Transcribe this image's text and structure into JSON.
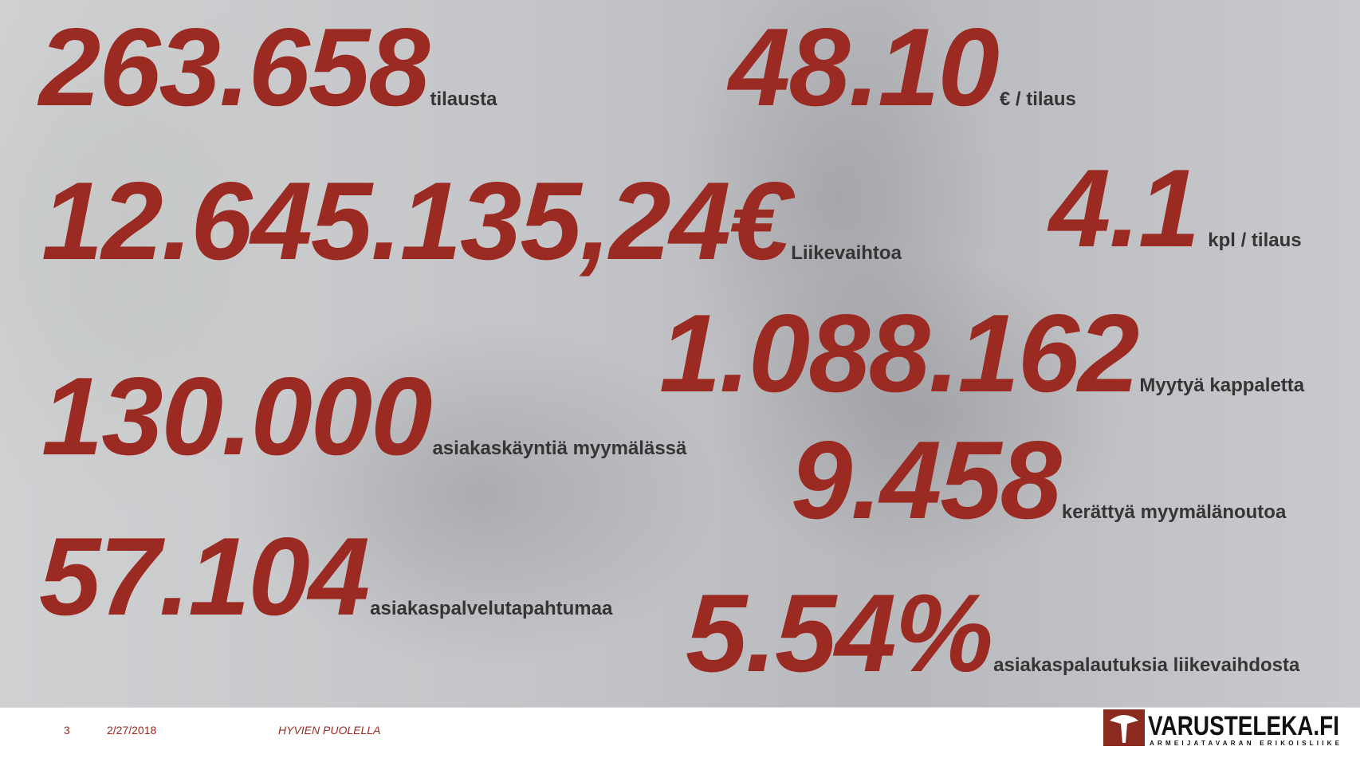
{
  "stats": [
    {
      "value": "263.658",
      "label": "tilausta"
    },
    {
      "value": "48.10",
      "label": "€ / tilaus"
    },
    {
      "value": "12.645.135,24€",
      "label": "Liikevaihtoa"
    },
    {
      "value": "4.1",
      "label": "kpl / tilaus"
    },
    {
      "value": "1.088.162",
      "label": "Myytyä kappaletta"
    },
    {
      "value": "130.000",
      "label": "asiakaskäyntiä myymälässä"
    },
    {
      "value": "9.458",
      "label": "kerättyä myymälänoutoa"
    },
    {
      "value": "57.104",
      "label": "asiakaspalvelutapahtumaa"
    },
    {
      "value": "5.54%",
      "label": "asiakaspalautuksia liikevaihdosta"
    }
  ],
  "footer": {
    "slide_number": "3",
    "date": "2/27/2018",
    "title": "HYVIEN PUOLELLA",
    "logo_text": "VARUSTELEKA.FI",
    "logo_tagline": "ARMEIJATAVARAN ERIKOISLIIKE"
  },
  "colors": {
    "accent": "#9b2b22",
    "label": "#353535"
  }
}
